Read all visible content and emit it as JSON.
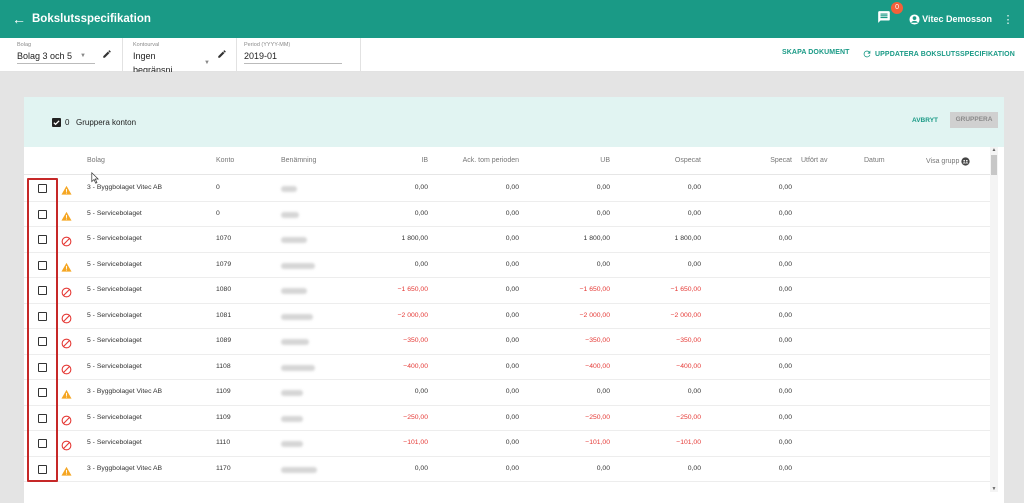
{
  "app": {
    "title": "Bokslutsspecifikation",
    "notifications": "0",
    "user": "Vitec Demosson"
  },
  "filters": {
    "bolag": {
      "label": "Bolag",
      "value": "Bolag 3 och 5"
    },
    "kontourval": {
      "label": "Kontourval",
      "value": "Ingen begränsni"
    },
    "period": {
      "label": "Period (YYYY-MM)",
      "value": "2019-01"
    },
    "skapa_label": "SKAPA DOKUMENT",
    "uppdatera_label": "UPPDATERA BOKSLUTSSPECIFIKATION"
  },
  "grouping": {
    "count": "0",
    "label": "Gruppera konton",
    "cancel_label": "AVBRYT",
    "group_label": "GRUPPERA"
  },
  "columns": {
    "bolag": "Bolag",
    "konto": "Konto",
    "benamning": "Benämning",
    "ib": "IB",
    "ack": "Ack. tom perioden",
    "ub": "UB",
    "ospecat": "Ospecat",
    "specat": "Specat",
    "utfort": "Utfört av",
    "datum": "Datum",
    "visa": "Visa grupp"
  },
  "status_colors": {
    "warning": "#f5a623",
    "error": "#e53935",
    "accent": "#1a9a86"
  },
  "rows": [
    {
      "status": "warning",
      "bolag": "3 - Byggbolaget Vitec AB",
      "konto": "0",
      "ib": "0,00",
      "ack": "0,00",
      "ub": "0,00",
      "ospecat": "0,00",
      "specat": "0,00",
      "neg": false
    },
    {
      "status": "warning",
      "bolag": "5 - Servicebolaget",
      "konto": "0",
      "ib": "0,00",
      "ack": "0,00",
      "ub": "0,00",
      "ospecat": "0,00",
      "specat": "0,00",
      "neg": false
    },
    {
      "status": "error",
      "bolag": "5 - Servicebolaget",
      "konto": "1070",
      "ib": "1 800,00",
      "ack": "0,00",
      "ub": "1 800,00",
      "ospecat": "1 800,00",
      "specat": "0,00",
      "neg": false
    },
    {
      "status": "warning",
      "bolag": "5 - Servicebolaget",
      "konto": "1079",
      "ib": "0,00",
      "ack": "0,00",
      "ub": "0,00",
      "ospecat": "0,00",
      "specat": "0,00",
      "neg": false
    },
    {
      "status": "error",
      "bolag": "5 - Servicebolaget",
      "konto": "1080",
      "ib": "−1 650,00",
      "ack": "0,00",
      "ub": "−1 650,00",
      "ospecat": "−1 650,00",
      "specat": "0,00",
      "neg": true
    },
    {
      "status": "error",
      "bolag": "5 - Servicebolaget",
      "konto": "1081",
      "ib": "−2 000,00",
      "ack": "0,00",
      "ub": "−2 000,00",
      "ospecat": "−2 000,00",
      "specat": "0,00",
      "neg": true
    },
    {
      "status": "error",
      "bolag": "5 - Servicebolaget",
      "konto": "1089",
      "ib": "−350,00",
      "ack": "0,00",
      "ub": "−350,00",
      "ospecat": "−350,00",
      "specat": "0,00",
      "neg": true
    },
    {
      "status": "error",
      "bolag": "5 - Servicebolaget",
      "konto": "1108",
      "ib": "−400,00",
      "ack": "0,00",
      "ub": "−400,00",
      "ospecat": "−400,00",
      "specat": "0,00",
      "neg": true
    },
    {
      "status": "warning",
      "bolag": "3 - Byggbolaget Vitec AB",
      "konto": "1109",
      "ib": "0,00",
      "ack": "0,00",
      "ub": "0,00",
      "ospecat": "0,00",
      "specat": "0,00",
      "neg": false
    },
    {
      "status": "error",
      "bolag": "5 - Servicebolaget",
      "konto": "1109",
      "ib": "−250,00",
      "ack": "0,00",
      "ub": "−250,00",
      "ospecat": "−250,00",
      "specat": "0,00",
      "neg": true
    },
    {
      "status": "error",
      "bolag": "5 - Servicebolaget",
      "konto": "1110",
      "ib": "−101,00",
      "ack": "0,00",
      "ub": "−101,00",
      "ospecat": "−101,00",
      "specat": "0,00",
      "neg": true
    },
    {
      "status": "warning",
      "bolag": "3 - Byggbolaget Vitec AB",
      "konto": "1170",
      "ib": "0,00",
      "ack": "0,00",
      "ub": "0,00",
      "ospecat": "0,00",
      "specat": "0,00",
      "neg": false
    }
  ]
}
